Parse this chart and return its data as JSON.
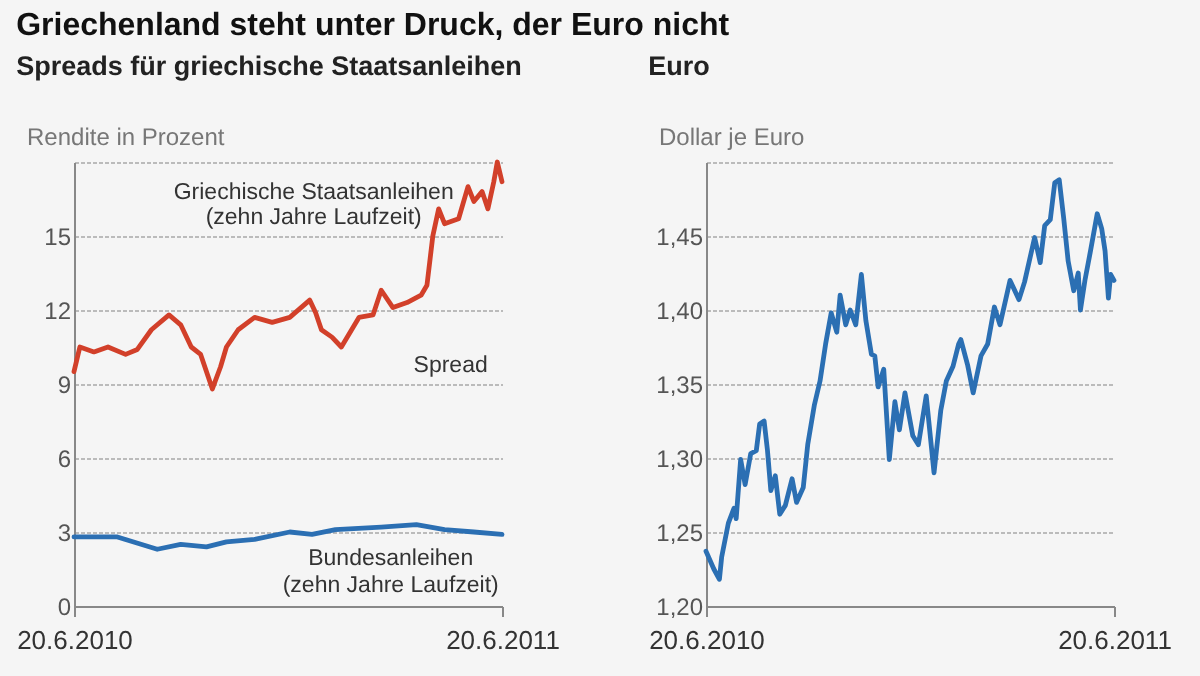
{
  "chart_data": [
    {
      "type": "line",
      "title": "Griechenland steht unter Druck, der Euro nicht",
      "subtitle": "Spreads für griechische Staatsanleihen",
      "ylabel": "Rendite in Prozent",
      "xlim": [
        "2010-06-20",
        "2011-06-20"
      ],
      "xticks": [
        {
          "value": "2010-06-20",
          "label": "20.6.2010"
        },
        {
          "value": "2011-06-20",
          "label": "20.6.2011"
        }
      ],
      "ylim": [
        0,
        18
      ],
      "yticks": [
        0,
        3,
        6,
        9,
        12,
        15,
        {
          "value": 18,
          "label": null
        }
      ],
      "grid": "y",
      "series": [
        {
          "color": "#d2402a",
          "x": [
            "2010-06-20",
            "2010-06-25",
            "2010-07-07",
            "2010-07-19",
            "2010-08-03",
            "2010-08-13",
            "2010-08-25",
            "2010-09-09",
            "2010-09-19",
            "2010-09-28",
            "2010-10-06",
            "2010-10-16",
            "2010-10-23",
            "2010-10-28",
            "2010-11-07",
            "2010-11-21",
            "2010-12-06",
            "2010-12-21",
            "2011-01-07",
            "2011-01-12",
            "2011-01-17",
            "2011-01-26",
            "2011-02-03",
            "2011-02-18",
            "2011-03-02",
            "2011-03-09",
            "2011-03-19",
            "2011-03-31",
            "2011-04-12",
            "2011-04-17",
            "2011-04-22",
            "2011-04-27",
            "2011-05-02",
            "2011-05-14",
            "2011-05-22",
            "2011-05-27",
            "2011-06-03",
            "2011-06-08",
            "2011-06-13",
            "2011-06-16",
            "2011-06-20"
          ],
          "values": [
            9.5,
            10.5,
            10.3,
            10.5,
            10.2,
            10.4,
            11.2,
            11.8,
            11.4,
            10.5,
            10.2,
            8.8,
            9.7,
            10.5,
            11.2,
            11.7,
            11.5,
            11.7,
            12.4,
            11.9,
            11.2,
            10.9,
            10.5,
            11.7,
            11.8,
            12.8,
            12.1,
            12.3,
            12.6,
            13.0,
            15.0,
            16.1,
            15.5,
            15.7,
            17.0,
            16.4,
            16.8,
            16.1,
            17.2,
            18.0,
            17.2
          ]
        },
        {
          "color": "#2b6fb3",
          "x": [
            "2010-06-20",
            "2010-07-27",
            "2010-08-30",
            "2010-09-19",
            "2010-10-11",
            "2010-10-28",
            "2010-11-21",
            "2010-12-21",
            "2011-01-09",
            "2011-01-29",
            "2011-03-09",
            "2011-04-08",
            "2011-05-02",
            "2011-05-27",
            "2011-06-20"
          ],
          "values": [
            2.8,
            2.8,
            2.3,
            2.5,
            2.4,
            2.6,
            2.7,
            3.0,
            2.9,
            3.1,
            3.2,
            3.3,
            3.1,
            3.0,
            2.9
          ]
        }
      ],
      "annotations": [
        "Griechische Staatsanleihen",
        "(zehn Jahre Laufzeit)",
        "Spread",
        "Bundesanleihen",
        "(zehn Jahre Laufzeit)"
      ]
    },
    {
      "type": "line",
      "title": "Euro",
      "ylabel": "Dollar je Euro",
      "xlim": [
        "2010-06-20",
        "2011-06-20"
      ],
      "xticks": [
        {
          "value": "2010-06-20",
          "label": "20.6.2010"
        },
        {
          "value": "2011-06-20",
          "label": "20.6.2011"
        }
      ],
      "ylim": [
        1.2,
        1.5
      ],
      "yticks": [
        {
          "value": 1.2,
          "label": "1,20"
        },
        {
          "value": 1.25,
          "label": "1,25"
        },
        {
          "value": 1.3,
          "label": "1,30"
        },
        {
          "value": 1.35,
          "label": "1,35"
        },
        {
          "value": 1.4,
          "label": "1,40"
        },
        {
          "value": 1.45,
          "label": "1,45"
        },
        {
          "value": 1.5,
          "label": null
        }
      ],
      "grid": "y",
      "series": [
        {
          "color": "#2b6fb3",
          "x": [
            "2010-06-20",
            "2010-06-27",
            "2010-07-02",
            "2010-07-04",
            "2010-07-10",
            "2010-07-15",
            "2010-07-17",
            "2010-07-21",
            "2010-07-25",
            "2010-07-30",
            "2010-08-04",
            "2010-08-07",
            "2010-08-11",
            "2010-08-14",
            "2010-08-17",
            "2010-08-21",
            "2010-08-25",
            "2010-08-30",
            "2010-09-05",
            "2010-09-09",
            "2010-09-15",
            "2010-09-19",
            "2010-09-25",
            "2010-09-30",
            "2010-10-05",
            "2010-10-10",
            "2010-10-15",
            "2010-10-18",
            "2010-10-23",
            "2010-10-27",
            "2010-11-01",
            "2010-11-06",
            "2010-11-10",
            "2010-11-15",
            "2010-11-18",
            "2010-11-21",
            "2010-11-26",
            "2010-12-01",
            "2010-12-06",
            "2010-12-10",
            "2010-12-15",
            "2010-12-22",
            "2010-12-27",
            "2011-01-03",
            "2011-01-10",
            "2011-01-16",
            "2011-01-21",
            "2011-01-27",
            "2011-02-01",
            "2011-02-03",
            "2011-02-09",
            "2011-02-14",
            "2011-02-21",
            "2011-02-27",
            "2011-03-05",
            "2011-03-10",
            "2011-03-19",
            "2011-03-27",
            "2011-04-01",
            "2011-04-10",
            "2011-04-15",
            "2011-04-19",
            "2011-04-24",
            "2011-04-28",
            "2011-05-02",
            "2011-05-06",
            "2011-05-10",
            "2011-05-15",
            "2011-05-19",
            "2011-05-21",
            "2011-05-25",
            "2011-05-30",
            "2011-06-05",
            "2011-06-09",
            "2011-06-12",
            "2011-06-15",
            "2011-06-17",
            "2011-06-20"
          ],
          "values": [
            1.237,
            1.225,
            1.218,
            1.233,
            1.256,
            1.266,
            1.259,
            1.299,
            1.282,
            1.303,
            1.305,
            1.323,
            1.325,
            1.305,
            1.278,
            1.288,
            1.262,
            1.268,
            1.286,
            1.27,
            1.28,
            1.309,
            1.336,
            1.352,
            1.377,
            1.398,
            1.385,
            1.41,
            1.39,
            1.4,
            1.39,
            1.424,
            1.393,
            1.37,
            1.369,
            1.348,
            1.36,
            1.299,
            1.338,
            1.319,
            1.344,
            1.315,
            1.309,
            1.342,
            1.29,
            1.332,
            1.352,
            1.362,
            1.377,
            1.38,
            1.363,
            1.344,
            1.369,
            1.377,
            1.402,
            1.39,
            1.42,
            1.407,
            1.419,
            1.449,
            1.432,
            1.457,
            1.461,
            1.486,
            1.488,
            1.462,
            1.433,
            1.413,
            1.425,
            1.4,
            1.42,
            1.44,
            1.465,
            1.455,
            1.44,
            1.408,
            1.424,
            1.42
          ]
        }
      ]
    }
  ]
}
